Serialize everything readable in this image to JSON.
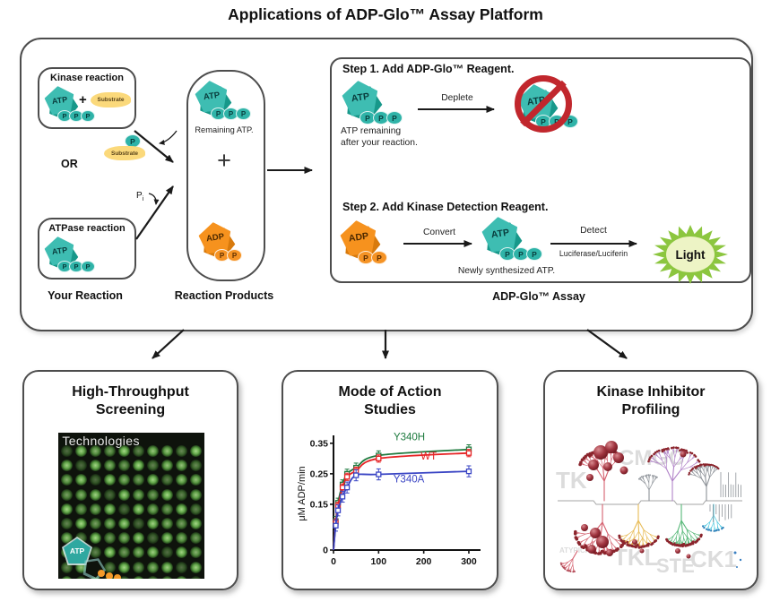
{
  "title": "Applications of ADP-Glo™ Assay Platform",
  "colors": {
    "teal": "#3ebdb2",
    "teal_dark": "#17988a",
    "orange": "#f6921e",
    "orange_dark": "#d87a0c",
    "substrate_yellow": "#fbd97b",
    "prohibition_red": "#c1272d",
    "light_green": "#8cc63f",
    "light_center": "#edf4c5",
    "panel_border": "#4d4d4d"
  },
  "main_diagram": {
    "p_label": "P",
    "kinase_box": {
      "label": "Kinase reaction",
      "atp": "ATP",
      "plus": "+",
      "substrate": "Substrate"
    },
    "released": {
      "p": "P",
      "substrate": "Substrate"
    },
    "or_label": "OR",
    "atpase_box": {
      "label": "ATPase reaction",
      "atp": "ATP"
    },
    "pi": {
      "label": "P",
      "sub": "i"
    },
    "your_reaction_label": "Your Reaction",
    "products_pill": {
      "atp": "ATP",
      "remaining_label": "Remaining ATP.",
      "plus": "+",
      "adp": "ADP"
    },
    "reaction_products_label": "Reaction Products",
    "steps": {
      "step1_heading": "Step 1. Add ADP-Glo™ Reagent.",
      "step1_atp": "ATP",
      "step1_caption_line1": "ATP remaining",
      "step1_caption_line2": "after your reaction.",
      "deplete_label": "Deplete",
      "no_atp": "ATP",
      "step2_heading": "Step 2. Add Kinase Detection Reagent.",
      "step2_adp": "ADP",
      "convert_label": "Convert",
      "step2_atp": "ATP",
      "newly_label": "Newly synthesized ATP.",
      "detect_label": "Detect",
      "detect_sub_label": "Luciferase/Luciferin",
      "light_label": "Light"
    },
    "assay_label": "ADP-Glo™ Assay"
  },
  "cards": [
    {
      "title_line1": "High-Throughput",
      "title_line2": "Screening",
      "plate": {
        "watermark": "t Technologies",
        "overlay_label": "ATP"
      }
    },
    {
      "title_line1": "Mode of Action",
      "title_line2": "Studies"
    },
    {
      "title_line1": "Kinase Inhibitor",
      "title_line2": "Profiling",
      "watermarks": [
        "TK",
        "CMGC",
        "ATYPICAL",
        "TKL",
        "STE",
        "CK1"
      ]
    }
  ],
  "chart_data": {
    "type": "scatter",
    "title": "Mode of Action Studies",
    "x": [
      5,
      10,
      20,
      30,
      50,
      100,
      300
    ],
    "series": [
      {
        "name": "Y340H",
        "color": "#1d7a3e",
        "values": [
          0.095,
          0.155,
          0.215,
          0.25,
          0.27,
          0.31,
          0.33
        ],
        "error": 0.015
      },
      {
        "name": "WT",
        "color": "#e62325",
        "values": [
          0.09,
          0.145,
          0.205,
          0.24,
          0.26,
          0.3,
          0.318
        ],
        "error": 0.012
      },
      {
        "name": "Y340A",
        "color": "#3a45c4",
        "values": [
          0.08,
          0.13,
          0.175,
          0.205,
          0.245,
          0.248,
          0.258
        ],
        "error": 0.018
      }
    ],
    "labels": [
      {
        "text": "Y340H",
        "x": 168,
        "y": 0.36,
        "color": "#1d7a3e"
      },
      {
        "text": "WT",
        "x": 211,
        "y": 0.297,
        "color": "#e62325"
      },
      {
        "text": "Y340A",
        "x": 167,
        "y": 0.221,
        "color": "#3a45c4"
      }
    ],
    "xlabel": "",
    "ylabel": "μM ADP/min",
    "xticks": [
      0,
      100,
      200,
      300
    ],
    "yticks": [
      0,
      0.15,
      0.25,
      0.35
    ],
    "xlim": [
      0,
      310
    ],
    "ylim": [
      0,
      0.37
    ],
    "grid": false,
    "marker": "open-square",
    "legend_position": "inline"
  }
}
